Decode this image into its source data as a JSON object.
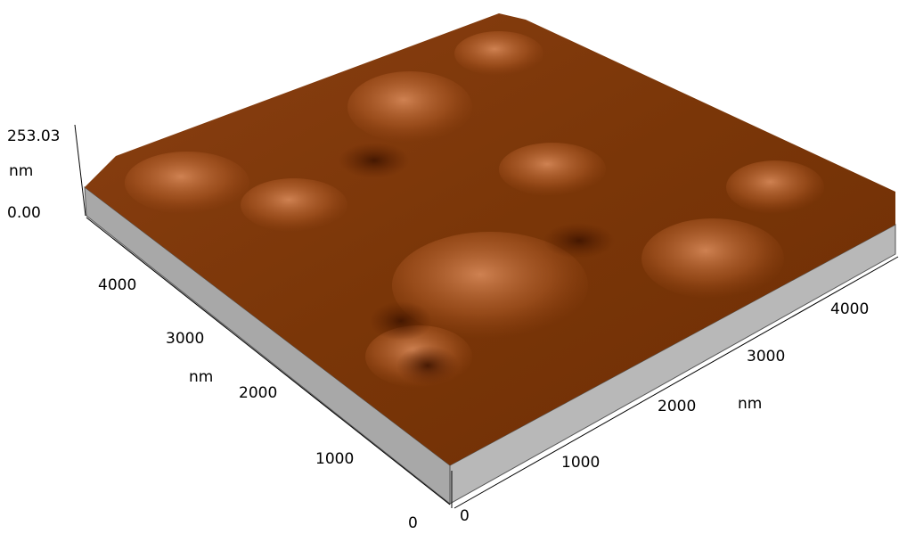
{
  "z_axis": {
    "max_label": "253.03",
    "unit": "nm",
    "min_label": "0.00"
  },
  "left_axis": {
    "ticks": [
      "4000",
      "3000",
      "2000",
      "1000",
      "0"
    ],
    "unit": "nm"
  },
  "right_axis": {
    "ticks": [
      "0",
      "1000",
      "2000",
      "3000",
      "4000"
    ],
    "unit": "nm"
  }
}
